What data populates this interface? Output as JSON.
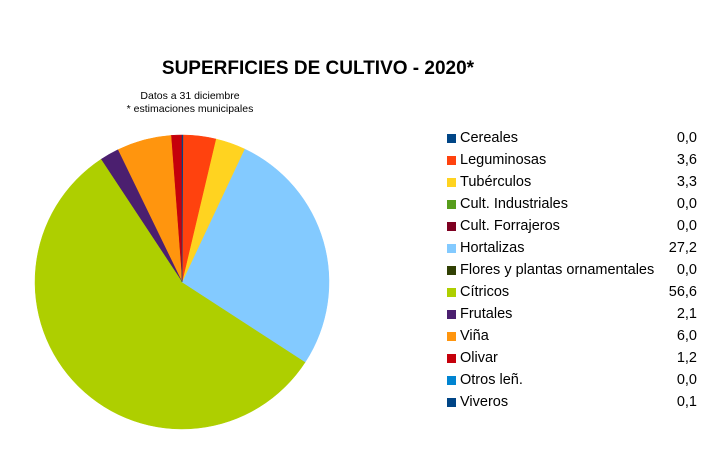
{
  "chart_data": {
    "type": "pie",
    "title": "SUPERFICIES DE CULTIVO - 2020*",
    "subtitle_lines": [
      "Datos a 31 diciembre",
      "* estimaciones municipales"
    ],
    "legend_position": "right",
    "slices": [
      {
        "label": "Cereales",
        "value": 0.0,
        "display": "0,0",
        "color": "#004586"
      },
      {
        "label": "Leguminosas",
        "value": 3.6,
        "display": "3,6",
        "color": "#ff420e"
      },
      {
        "label": "Tubérculos",
        "value": 3.3,
        "display": "3,3",
        "color": "#ffd320"
      },
      {
        "label": "Cult. Industriales",
        "value": 0.0,
        "display": "0,0",
        "color": "#579d1c"
      },
      {
        "label": "Cult. Forrajeros",
        "value": 0.0,
        "display": "0,0",
        "color": "#7e0021"
      },
      {
        "label": "Hortalizas",
        "value": 27.2,
        "display": "27,2",
        "color": "#83caff"
      },
      {
        "label": "Flores y plantas ornamentales",
        "value": 0.0,
        "display": "0,0",
        "color": "#314004"
      },
      {
        "label": "Cítricos",
        "value": 56.6,
        "display": "56,6",
        "color": "#aecf00"
      },
      {
        "label": "Frutales",
        "value": 2.1,
        "display": "2,1",
        "color": "#4b1f6f"
      },
      {
        "label": "Viña",
        "value": 6.0,
        "display": "6,0",
        "color": "#ff950e"
      },
      {
        "label": "Olivar",
        "value": 1.2,
        "display": "1,2",
        "color": "#c5000b"
      },
      {
        "label": "Otros leñ.",
        "value": 0.0,
        "display": "0,0",
        "color": "#0084d1"
      },
      {
        "label": "Viveros",
        "value": 0.1,
        "display": "0,1",
        "color": "#004586"
      }
    ],
    "draw_order": [
      "Olivar",
      "Viña",
      "Frutales",
      "Cítricos",
      "Flores y plantas ornamentales",
      "Hortalizas",
      "Cult. Forrajeros",
      "Cult. Industriales",
      "Tubérculos",
      "Leguminosas",
      "Cereales",
      "Viveros",
      "Otros leñ."
    ]
  }
}
